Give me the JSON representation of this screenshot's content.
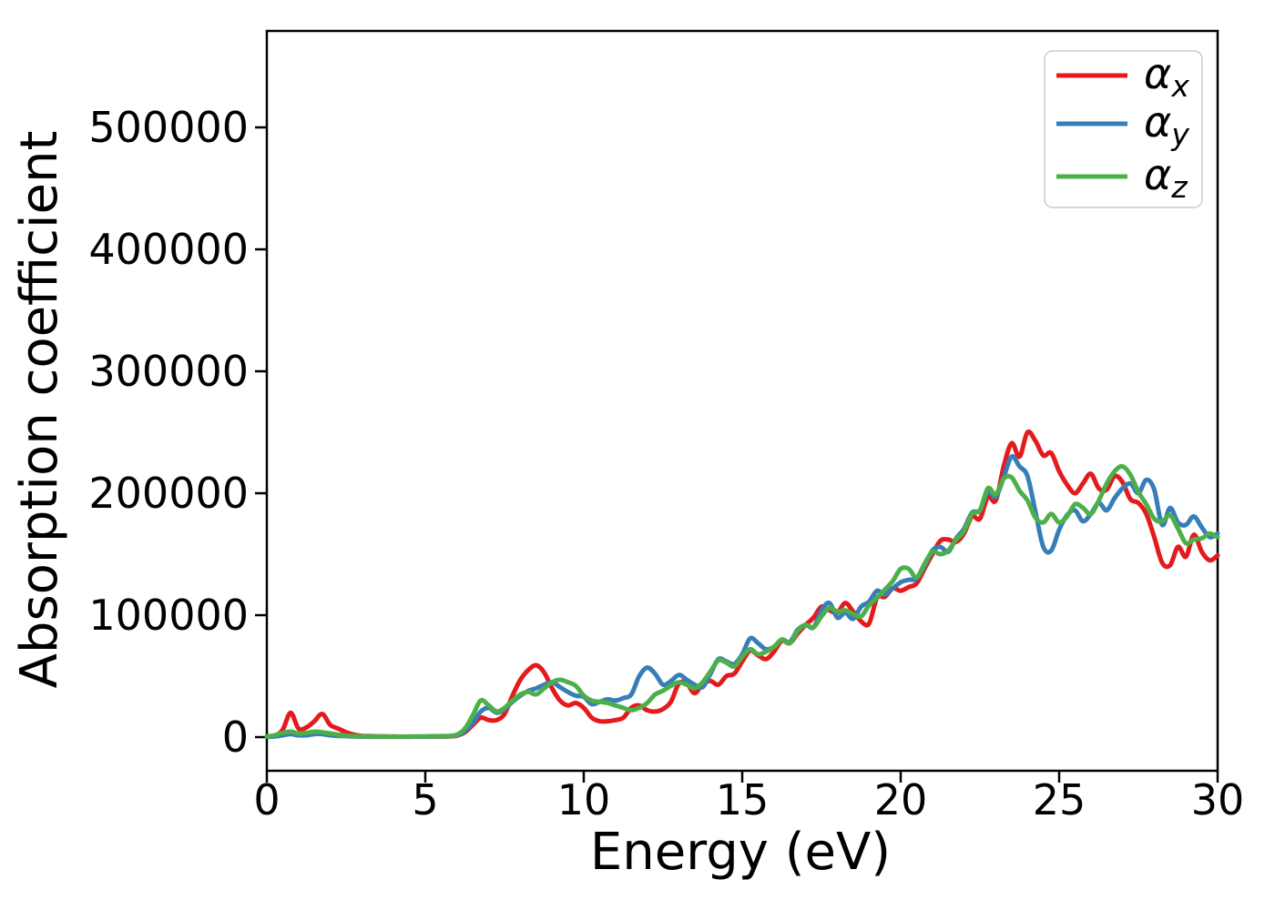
{
  "figure": {
    "xlabel": "Energy (eV)",
    "ylabel": "Absorption coefficient",
    "legend_items": [
      {
        "symbol": "α",
        "sub": "x"
      },
      {
        "symbol": "α",
        "sub": "y"
      },
      {
        "symbol": "α",
        "sub": "z"
      }
    ]
  },
  "colors": {
    "alpha_x": "#e41a1c",
    "alpha_y": "#377eb8",
    "alpha_z": "#4daf4a",
    "axis": "#000000",
    "legend_frame": "#cccccc"
  },
  "chart_data": {
    "type": "line",
    "title": "",
    "xlabel": "Energy (eV)",
    "ylabel": "Absorption coefficient",
    "x_unit": "eV",
    "xlim": [
      0,
      30
    ],
    "ylim": [
      -27600,
      579100
    ],
    "xticks": [
      0,
      5,
      10,
      15,
      20,
      25,
      30
    ],
    "yticks": [
      0,
      100000,
      200000,
      300000,
      400000,
      500000
    ],
    "grid": false,
    "legend_position": "upper right",
    "x": [
      0,
      0.25,
      0.5,
      0.75,
      1,
      1.25,
      1.5,
      1.75,
      2,
      2.25,
      2.5,
      2.75,
      3,
      3.25,
      3.5,
      3.75,
      4,
      4.25,
      4.5,
      4.75,
      5,
      5.25,
      5.5,
      5.75,
      6,
      6.25,
      6.5,
      6.75,
      7,
      7.25,
      7.5,
      7.75,
      8,
      8.25,
      8.5,
      8.75,
      9,
      9.25,
      9.5,
      9.75,
      10,
      10.25,
      10.5,
      10.75,
      11,
      11.25,
      11.5,
      11.75,
      12,
      12.25,
      12.5,
      12.75,
      13,
      13.25,
      13.5,
      13.75,
      14,
      14.25,
      14.5,
      14.75,
      15,
      15.25,
      15.5,
      15.75,
      16,
      16.25,
      16.5,
      16.75,
      17,
      17.25,
      17.5,
      17.75,
      18,
      18.25,
      18.5,
      18.75,
      19,
      19.25,
      19.5,
      19.75,
      20,
      20.25,
      20.5,
      20.75,
      21,
      21.25,
      21.5,
      21.75,
      22,
      22.25,
      22.5,
      22.75,
      23,
      23.25,
      23.5,
      23.75,
      24,
      24.25,
      24.5,
      24.75,
      25,
      25.25,
      25.5,
      25.75,
      26,
      26.25,
      26.5,
      26.75,
      27,
      27.25,
      27.5,
      27.75,
      28,
      28.25,
      28.5,
      28.75,
      29,
      29.25,
      29.5,
      29.75,
      30
    ],
    "series": [
      {
        "name": "alpha_x",
        "label": "α_x",
        "color": "#e41a1c",
        "values": [
          500,
          1000,
          6000,
          20000,
          7000,
          8000,
          13000,
          19000,
          10000,
          7000,
          4000,
          2000,
          1000,
          800,
          600,
          500,
          500,
          400,
          400,
          400,
          400,
          500,
          500,
          600,
          1200,
          4000,
          10000,
          16000,
          14000,
          14000,
          19000,
          34000,
          47000,
          55000,
          59000,
          53000,
          40000,
          30000,
          26000,
          28000,
          24000,
          16000,
          13000,
          13000,
          14000,
          16000,
          24000,
          26000,
          22000,
          21000,
          23000,
          29000,
          44000,
          44000,
          36000,
          44000,
          46000,
          43000,
          50000,
          52000,
          62000,
          71000,
          67000,
          64000,
          70000,
          79000,
          77000,
          85000,
          92000,
          98000,
          107000,
          104000,
          102000,
          110000,
          103000,
          95000,
          93000,
          114000,
          115000,
          122000,
          120000,
          123000,
          126000,
          138000,
          150000,
          161000,
          162000,
          160000,
          167000,
          181000,
          179000,
          197000,
          194000,
          222000,
          241000,
          230000,
          250000,
          243000,
          231000,
          233000,
          218000,
          207000,
          200000,
          208000,
          216000,
          204000,
          203000,
          214000,
          209000,
          195000,
          192000,
          183000,
          164000,
          143000,
          141000,
          156000,
          148000,
          166000,
          152000,
          145000,
          149000
        ]
      },
      {
        "name": "alpha_y",
        "label": "α_y",
        "color": "#377eb8",
        "values": [
          300,
          500,
          1500,
          2500,
          1500,
          1500,
          2500,
          2500,
          1500,
          1000,
          800,
          500,
          400,
          300,
          300,
          300,
          300,
          300,
          300,
          400,
          400,
          500,
          600,
          800,
          1500,
          5000,
          12000,
          21000,
          24000,
          20000,
          23000,
          29000,
          34000,
          38000,
          40000,
          43000,
          45000,
          41000,
          37000,
          34000,
          33000,
          27000,
          29000,
          31000,
          30000,
          32000,
          35000,
          50000,
          57000,
          52000,
          43000,
          46000,
          51000,
          47000,
          43000,
          41000,
          52000,
          64000,
          62000,
          60000,
          68000,
          81000,
          77000,
          72000,
          74000,
          80000,
          78000,
          88000,
          92000,
          90000,
          104000,
          110000,
          98000,
          102000,
          97000,
          107000,
          111000,
          120000,
          117000,
          122000,
          127000,
          129000,
          130000,
          140000,
          153000,
          156000,
          152000,
          163000,
          171000,
          184000,
          186000,
          201000,
          197000,
          213000,
          230000,
          222000,
          214000,
          185000,
          156000,
          153000,
          170000,
          182000,
          186000,
          177000,
          183000,
          192000,
          186000,
          196000,
          204000,
          208000,
          200000,
          211000,
          203000,
          174000,
          188000,
          176000,
          174000,
          181000,
          172000,
          164000,
          167000
        ]
      },
      {
        "name": "alpha_z",
        "label": "α_z",
        "color": "#4daf4a",
        "values": [
          500,
          1500,
          3500,
          4500,
          3000,
          3500,
          4500,
          4000,
          3000,
          2000,
          1200,
          800,
          600,
          500,
          500,
          400,
          400,
          400,
          500,
          500,
          600,
          700,
          800,
          1000,
          2000,
          7000,
          18000,
          30000,
          26000,
          21000,
          24000,
          30000,
          35000,
          37000,
          35000,
          40000,
          45000,
          47000,
          45000,
          42000,
          34000,
          30000,
          29000,
          28000,
          26000,
          24000,
          22000,
          24000,
          28000,
          35000,
          38000,
          42000,
          45000,
          43000,
          40000,
          45000,
          54000,
          63000,
          61000,
          58000,
          66000,
          72000,
          68000,
          70000,
          74000,
          80000,
          77000,
          87000,
          92000,
          90000,
          99000,
          106000,
          103000,
          104000,
          101000,
          99000,
          108000,
          114000,
          121000,
          128000,
          138000,
          138000,
          131000,
          142000,
          152000,
          150000,
          153000,
          162000,
          169000,
          183000,
          186000,
          204000,
          199000,
          212000,
          213000,
          202000,
          194000,
          180000,
          176000,
          183000,
          176000,
          181000,
          191000,
          188000,
          183000,
          194000,
          208000,
          218000,
          222000,
          215000,
          201000,
          191000,
          179000,
          177000,
          182000,
          171000,
          159000,
          162000,
          163000,
          167000,
          164000
        ]
      }
    ]
  }
}
